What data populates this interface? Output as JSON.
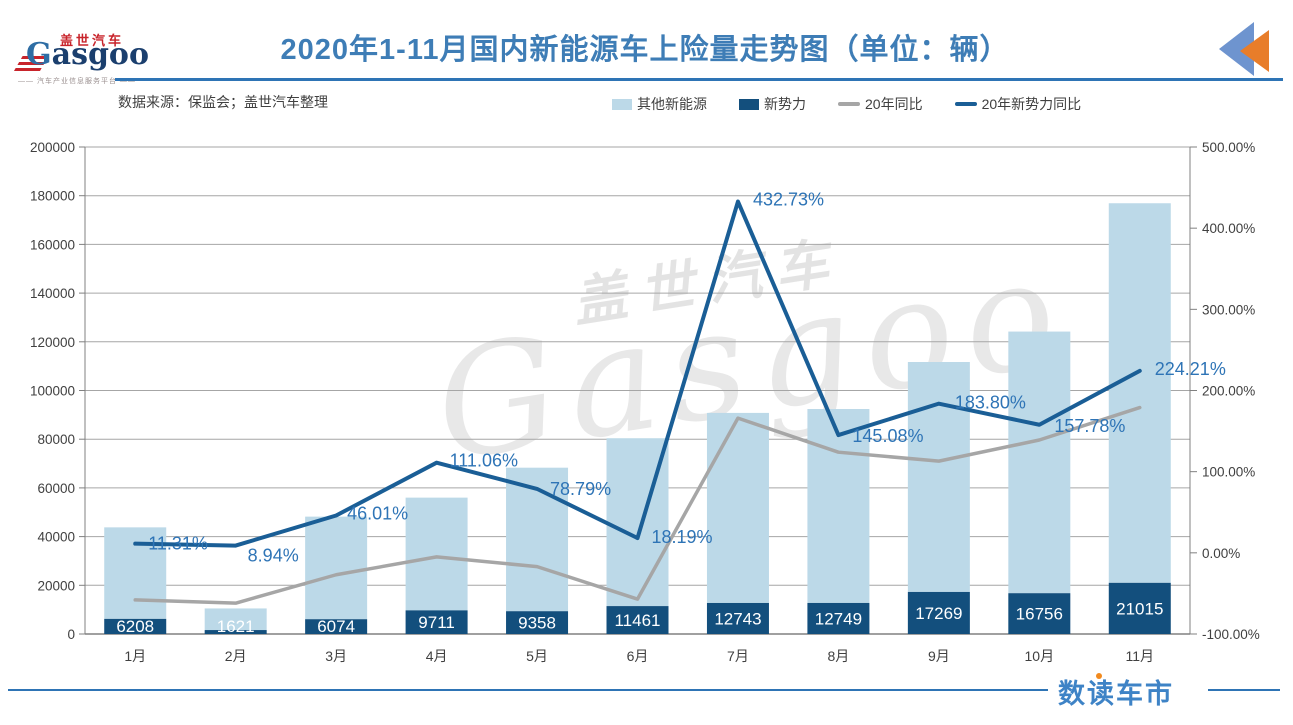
{
  "header": {
    "title": "2020年1-11月国内新能源车上险量走势图（单位：辆）",
    "source_note": "数据来源：保监会；盖世汽车整理",
    "logo": {
      "cn": "盖世汽车",
      "en": "Gasgoo",
      "tagline": "—— 汽车产业信息服务平台 ——"
    }
  },
  "footer": {
    "logo_text": "数读车市"
  },
  "watermark": {
    "cn": "盖世汽车",
    "en": "Gasgoo"
  },
  "colors": {
    "title_blue": "#3E7DB6",
    "accent_line_blue": "#2E74B5",
    "bar_light": "#BCD9E8",
    "bar_dark": "#134F7D",
    "line_gray": "#A6A6A6",
    "line_dark_blue": "#1A5E96",
    "label_blue": "#2E74B6",
    "axis_text": "#404040",
    "gridline": "#A6A6A6",
    "border": "#808080",
    "triangle_blue": "#6E94CF",
    "triangle_orange": "#E87D2A"
  },
  "chart_data": {
    "type": "combo: stacked bar + line, dual axis",
    "categories": [
      "1月",
      "2月",
      "3月",
      "4月",
      "5月",
      "6月",
      "7月",
      "8月",
      "9月",
      "10月",
      "11月"
    ],
    "totals_estimated": [
      43800,
      10500,
      48200,
      56000,
      68300,
      80400,
      90800,
      92400,
      111700,
      124200,
      176900
    ],
    "series": [
      {
        "name": "其他新能源",
        "type": "bar",
        "axis": "left",
        "color": "#BCD9E8",
        "values": [
          37592,
          8879,
          42126,
          46289,
          58942,
          68939,
          78057,
          79651,
          94431,
          107444,
          155885
        ]
      },
      {
        "name": "新势力",
        "type": "bar",
        "axis": "left",
        "color": "#134F7D",
        "values": [
          6208,
          1621,
          6074,
          9711,
          9358,
          11461,
          12743,
          12749,
          17269,
          16756,
          21015
        ],
        "data_labels": [
          "6208",
          "1621",
          "6074",
          "9711",
          "9358",
          "11461",
          "12743",
          "12749",
          "17269",
          "16756",
          "21015"
        ]
      },
      {
        "name": "20年同比",
        "type": "line",
        "axis": "right",
        "color": "#A6A6A6",
        "values_pct": [
          -58,
          -62,
          -27,
          -5,
          -17,
          -57,
          166,
          124,
          113,
          139,
          179
        ],
        "note": "unlabeled in chart; values estimated from line position"
      },
      {
        "name": "20年新势力同比",
        "type": "line",
        "axis": "right",
        "color": "#1A5E96",
        "values_pct": [
          11.31,
          8.94,
          46.01,
          111.06,
          78.79,
          18.19,
          432.73,
          145.08,
          183.8,
          157.78,
          224.21
        ],
        "data_labels": [
          "11.31%",
          "8.94%",
          "46.01%",
          "111.06%",
          "78.79%",
          "18.19%",
          "432.73%",
          "145.08%",
          "183.80%",
          "157.78%",
          "224.21%"
        ]
      }
    ],
    "left_axis": {
      "min": 0,
      "max": 200000,
      "step": 20000,
      "ticks": [
        "0",
        "20000",
        "40000",
        "60000",
        "80000",
        "100000",
        "120000",
        "140000",
        "160000",
        "180000",
        "200000"
      ]
    },
    "right_axis": {
      "min": -100,
      "max": 500,
      "step": 100,
      "ticks": [
        "-100.00%",
        "0.00%",
        "100.00%",
        "200.00%",
        "300.00%",
        "400.00%",
        "500.00%"
      ]
    },
    "grid": "horizontal gridlines from left axis",
    "legend_position": "top-right"
  }
}
